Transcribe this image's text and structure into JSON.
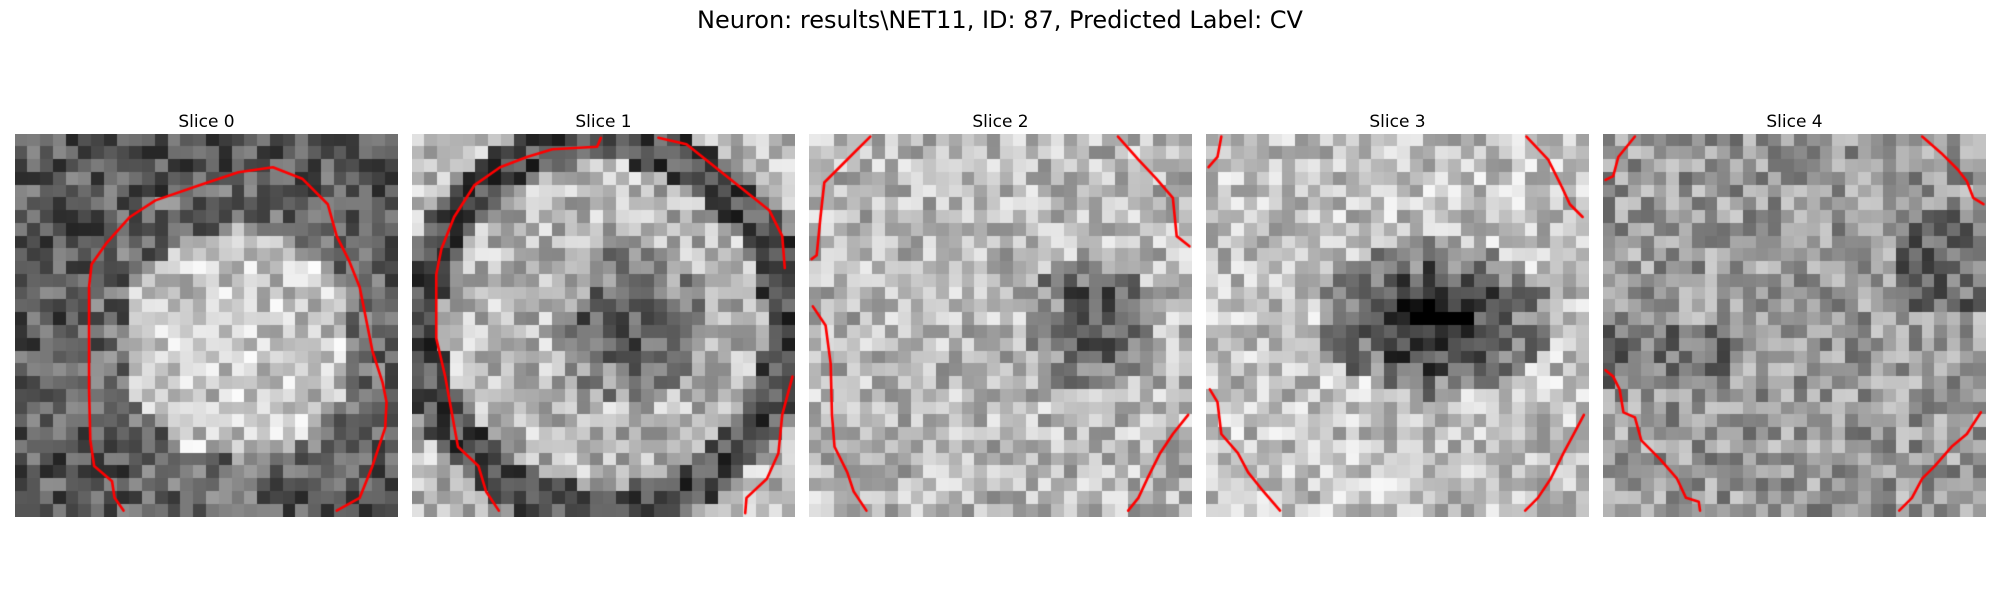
{
  "figure": {
    "title": "Neuron: results\\NET11, ID: 87, Predicted Label: CV",
    "contour_color": "#ff0000",
    "panels": [
      {
        "label": "Slice 0",
        "grid_size": 30,
        "brightness_profile": "bright-disc",
        "contour": [
          [
            [
              8.5,
              29.5
            ],
            [
              7.8,
              28.5
            ],
            [
              7.6,
              27.2
            ],
            [
              6.2,
              26.0
            ],
            [
              5.9,
              24.0
            ],
            [
              5.8,
              20.0
            ],
            [
              5.8,
              12.0
            ],
            [
              6.0,
              10.2
            ],
            [
              7.2,
              8.5
            ],
            [
              9.0,
              6.5
            ],
            [
              11.0,
              5.2
            ],
            [
              14.5,
              4.0
            ],
            [
              17.5,
              3.0
            ],
            [
              20.2,
              2.6
            ],
            [
              22.5,
              3.5
            ],
            [
              24.5,
              5.5
            ],
            [
              25.2,
              8.0
            ],
            [
              26.2,
              10.0
            ],
            [
              27.0,
              12.0
            ],
            [
              28.0,
              17.0
            ],
            [
              28.8,
              19.5
            ],
            [
              29.1,
              21.0
            ],
            [
              29.0,
              23.0
            ],
            [
              28.0,
              26.0
            ],
            [
              27.0,
              28.5
            ],
            [
              25.2,
              29.5
            ]
          ]
        ]
      },
      {
        "label": "Slice 1",
        "grid_size": 30,
        "brightness_profile": "dark-core-mid",
        "contour": [
          [
            [
              6.8,
              29.5
            ],
            [
              5.8,
              28.0
            ],
            [
              5.2,
              26.0
            ],
            [
              3.6,
              24.5
            ],
            [
              2.6,
              19.0
            ],
            [
              1.9,
              16.0
            ],
            [
              1.9,
              11.0
            ],
            [
              2.3,
              9.0
            ],
            [
              3.3,
              6.5
            ],
            [
              4.9,
              4.0
            ],
            [
              6.9,
              2.6
            ],
            [
              9.0,
              1.8
            ],
            [
              11.0,
              1.2
            ],
            [
              14.5,
              1.0
            ],
            [
              14.8,
              0.3
            ]
          ],
          [
            [
              19.3,
              0.3
            ],
            [
              21.5,
              0.8
            ],
            [
              23.0,
              2.0
            ],
            [
              25.5,
              4.0
            ],
            [
              28.0,
              6.0
            ],
            [
              29.0,
              8.0
            ],
            [
              29.2,
              10.5
            ]
          ],
          [
            [
              29.8,
              19.0
            ],
            [
              29.0,
              22.0
            ],
            [
              28.7,
              25.0
            ],
            [
              27.8,
              27.0
            ],
            [
              26.2,
              28.5
            ],
            [
              26.1,
              29.7
            ]
          ]
        ]
      },
      {
        "label": "Slice 2",
        "grid_size": 30,
        "brightness_profile": "dark-core-right",
        "contour": [
          [
            [
              4.8,
              0.2
            ],
            [
              3.0,
              2.0
            ],
            [
              1.2,
              3.8
            ],
            [
              0.9,
              6.5
            ],
            [
              0.6,
              9.5
            ],
            [
              0.2,
              9.8
            ]
          ],
          [
            [
              0.3,
              13.5
            ],
            [
              1.3,
              15.0
            ],
            [
              1.7,
              18.0
            ],
            [
              1.8,
              22.0
            ],
            [
              2.0,
              24.5
            ],
            [
              3.0,
              26.5
            ],
            [
              3.5,
              28.0
            ],
            [
              4.5,
              29.5
            ]
          ],
          [
            [
              24.2,
              0.2
            ],
            [
              25.8,
              2.0
            ],
            [
              27.2,
              3.5
            ],
            [
              28.5,
              5.0
            ],
            [
              28.8,
              8.0
            ],
            [
              29.8,
              8.8
            ]
          ],
          [
            [
              29.7,
              22.0
            ],
            [
              28.5,
              23.5
            ],
            [
              27.5,
              25.0
            ],
            [
              26.5,
              27.0
            ],
            [
              25.8,
              28.5
            ],
            [
              25.0,
              29.5
            ]
          ]
        ]
      },
      {
        "label": "Slice 3",
        "grid_size": 30,
        "brightness_profile": "dark-core-strong",
        "contour": [
          [
            [
              1.2,
              0.2
            ],
            [
              0.9,
              1.8
            ],
            [
              0.2,
              2.6
            ]
          ],
          [
            [
              0.3,
              20.0
            ],
            [
              0.9,
              21.0
            ],
            [
              1.2,
              23.5
            ],
            [
              2.5,
              25.0
            ],
            [
              3.3,
              26.5
            ],
            [
              4.5,
              28.0
            ],
            [
              5.8,
              29.5
            ]
          ],
          [
            [
              25.1,
              0.2
            ],
            [
              26.8,
              2.0
            ],
            [
              27.8,
              4.0
            ],
            [
              28.5,
              5.5
            ],
            [
              29.5,
              6.5
            ]
          ],
          [
            [
              29.6,
              22.0
            ],
            [
              28.8,
              23.5
            ],
            [
              28.0,
              25.0
            ],
            [
              27.0,
              27.0
            ],
            [
              26.0,
              28.5
            ],
            [
              25.0,
              29.5
            ]
          ]
        ]
      },
      {
        "label": "Slice 4",
        "grid_size": 30,
        "brightness_profile": "noisy-mid",
        "contour": [
          [
            [
              2.5,
              0.2
            ],
            [
              1.2,
              1.8
            ],
            [
              0.8,
              3.3
            ],
            [
              0.2,
              3.6
            ]
          ],
          [
            [
              0.2,
              18.5
            ],
            [
              0.8,
              19.0
            ],
            [
              1.3,
              20.0
            ],
            [
              1.6,
              21.8
            ],
            [
              2.5,
              22.2
            ],
            [
              3.0,
              24.0
            ],
            [
              4.5,
              25.5
            ],
            [
              5.8,
              27.0
            ],
            [
              6.5,
              28.5
            ],
            [
              7.5,
              28.8
            ],
            [
              7.6,
              29.5
            ]
          ],
          [
            [
              25.0,
              0.2
            ],
            [
              26.5,
              1.5
            ],
            [
              27.8,
              2.8
            ],
            [
              28.5,
              3.7
            ],
            [
              29.0,
              5.0
            ],
            [
              29.8,
              5.5
            ]
          ],
          [
            [
              29.6,
              21.8
            ],
            [
              28.5,
              23.5
            ],
            [
              27.3,
              24.5
            ],
            [
              26.0,
              26.0
            ],
            [
              25.0,
              27.0
            ],
            [
              24.2,
              28.5
            ],
            [
              23.2,
              29.5
            ]
          ]
        ]
      }
    ]
  }
}
